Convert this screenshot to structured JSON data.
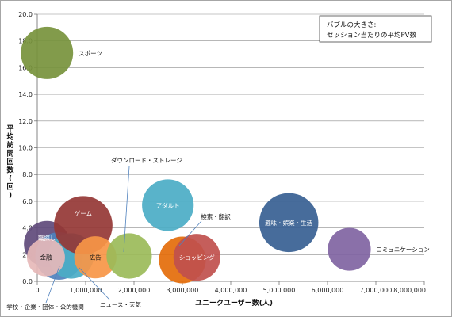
{
  "chart_data": {
    "type": "bubble",
    "xlabel": "ユニークユーザー数(人)",
    "ylabel": "平均訪問回数(回)",
    "xlim": [
      0,
      8000000
    ],
    "ylim": [
      0,
      20
    ],
    "x_tick_labels": [
      "0",
      "1,000,000",
      "2,000,000",
      "3,000,000",
      "4,000,000",
      "5,000,000",
      "6,000,000",
      "7,000,000",
      "8,000,000"
    ],
    "y_tick_labels": [
      "0.0",
      "2.0",
      "4.0",
      "6.0",
      "8.0",
      "10.0",
      "12.0",
      "14.0",
      "16.0",
      "18.0",
      "20.0"
    ],
    "grid": "horizontal",
    "legend_note": [
      "バブルの大きさ:",
      "セッション当たりの平均PV数"
    ],
    "series": [
      {
        "name": "スポーツ",
        "x": 200000,
        "y": 17.1,
        "size": 4.0,
        "color": "#77933c"
      },
      {
        "name": "職探し",
        "x": 200000,
        "y": 2.8,
        "size": 3.1,
        "color": "#604a7b"
      },
      {
        "name": "学校・企業・団体・公的機関",
        "x": 450000,
        "y": 1.9,
        "size": 3.3,
        "color": "#4f81bd"
      },
      {
        "name": "",
        "x": 700000,
        "y": 1.9,
        "size": 3.0,
        "color": "#4bacc6"
      },
      {
        "name": "金融",
        "x": 180000,
        "y": 1.8,
        "size": 2.1,
        "color": "#e6b9b8"
      },
      {
        "name": "ゲーム",
        "x": 950000,
        "y": 4.2,
        "size": 5.0,
        "color": "#953735"
      },
      {
        "name": "広告",
        "x": 1200000,
        "y": 1.8,
        "size": 2.6,
        "color": "#f79646"
      },
      {
        "name": "ニュース・天気",
        "x": 1900000,
        "y": 1.9,
        "size": 3.0,
        "color": "#9bbb59"
      },
      {
        "name": "ダウンロード・ストレージ",
        "x": 1900000,
        "y": 1.9,
        "size": 0,
        "color": "#9bbb59"
      },
      {
        "name": "アダルト",
        "x": 2700000,
        "y": 5.7,
        "size": 3.9,
        "color": "#4bacc6"
      },
      {
        "name": "検索・翻訳",
        "x": 3000000,
        "y": 1.6,
        "size": 3.2,
        "color": "#e46c0a"
      },
      {
        "name": "ショッピング",
        "x": 3300000,
        "y": 1.8,
        "size": 3.2,
        "color": "#c0504d"
      },
      {
        "name": "趣味・娯楽・生活",
        "x": 5200000,
        "y": 4.4,
        "size": 5.1,
        "color": "#376092"
      },
      {
        "name": "コミュニケーション",
        "x": 6450000,
        "y": 2.4,
        "size": 2.7,
        "color": "#8064a2"
      }
    ]
  }
}
